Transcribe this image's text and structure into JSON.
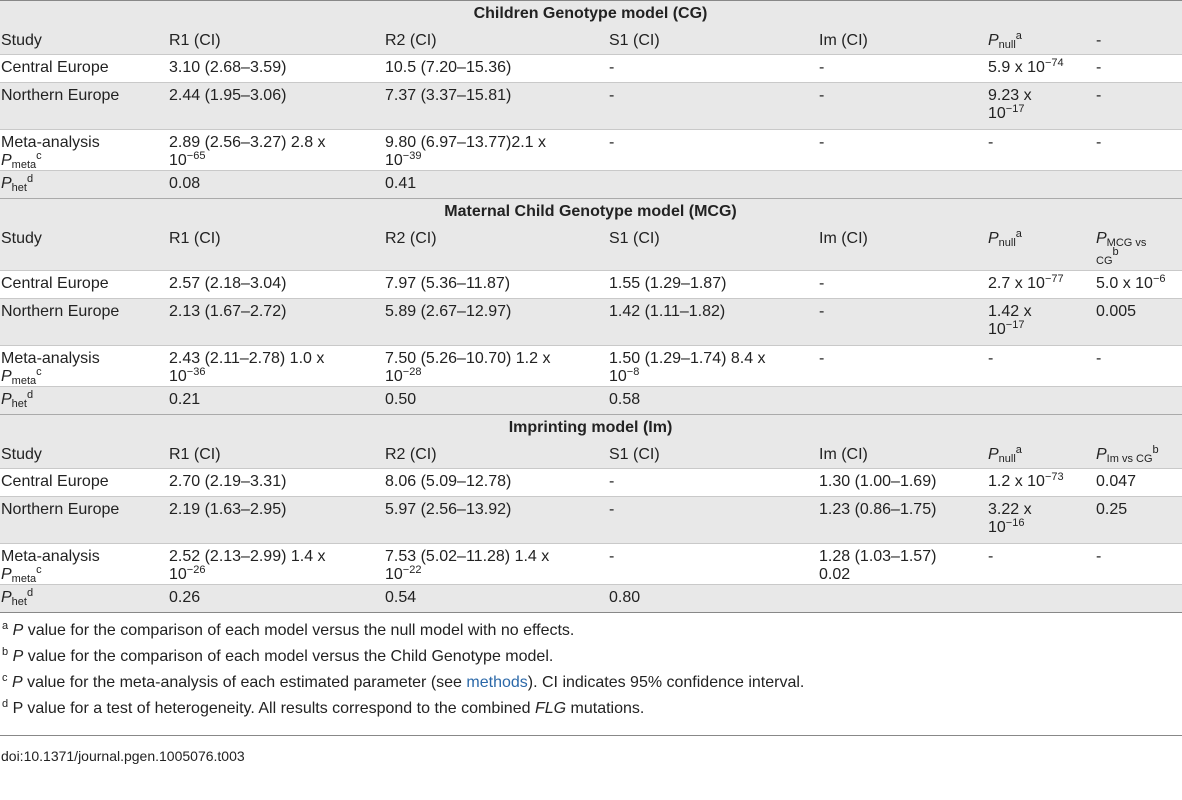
{
  "sections": [
    {
      "title": "Children Genotype model (CG)",
      "header": [
        "Study",
        "R1 (CI)",
        "R2 (CI)",
        "S1 (CI)",
        "Im (CI)",
        "P",
        "null",
        "a",
        "-"
      ],
      "rows": [
        [
          "Central Europe",
          "3.10 (2.68–3.59)",
          "10.5 (7.20–15.36)",
          "-",
          "-",
          "5.9 x 10",
          "−74",
          "-"
        ],
        [
          "Northern Europe",
          "2.44 (1.95–3.06)",
          "7.37 (3.37–15.81)",
          "-",
          "-",
          "9.23 x",
          "10",
          "−17",
          "-"
        ],
        [
          "Meta-analysis",
          "P",
          "meta",
          "c",
          "2.89 (2.56–3.27) 2.8 x",
          "10",
          "−65",
          "9.80 (6.97–13.77)2.1 x",
          "10",
          "−39",
          "-",
          "-",
          "-",
          "-"
        ],
        [
          "P",
          "het",
          "d",
          "0.08",
          "0.41"
        ]
      ]
    },
    {
      "title": "Maternal Child Genotype model (MCG)",
      "header": [
        "Study",
        "R1 (CI)",
        "R2 (CI)",
        "S1 (CI)",
        "Im (CI)",
        "P",
        "null",
        "a",
        "P",
        "MCG vs",
        "CG",
        "b"
      ],
      "rows": [
        [
          "Central Europe",
          "2.57 (2.18–3.04)",
          "7.97 (5.36–11.87)",
          "1.55 (1.29–1.87)",
          "-",
          "2.7 x 10",
          "−77",
          "5.0 x 10",
          "−6"
        ],
        [
          "Northern Europe",
          "2.13 (1.67–2.72)",
          "5.89 (2.67–12.97)",
          "1.42 (1.11–1.82)",
          "-",
          "1.42 x",
          "10",
          "−17",
          "0.005"
        ],
        [
          "Meta-analysis",
          "P",
          "meta",
          "c",
          "2.43 (2.11–2.78) 1.0 x",
          "10",
          "−36",
          "7.50 (5.26–10.70) 1.2 x",
          "10",
          "−28",
          "1.50 (1.29–1.74) 8.4 x",
          "10",
          "−8",
          "-",
          "-",
          "-"
        ],
        [
          "P",
          "het",
          "d",
          "0.21",
          "0.50",
          "0.58"
        ]
      ]
    },
    {
      "title": "Imprinting model (Im)",
      "header": [
        "Study",
        "R1 (CI)",
        "R2 (CI)",
        "S1 (CI)",
        "Im (CI)",
        "P",
        "null",
        "a",
        "P",
        "Im vs CG",
        "b"
      ],
      "rows": [
        [
          "Central Europe",
          "2.70 (2.19–3.31)",
          "8.06 (5.09–12.78)",
          "-",
          "1.30 (1.00–1.69)",
          "1.2 x 10",
          "−73",
          "0.047"
        ],
        [
          "Northern Europe",
          "2.19 (1.63–2.95)",
          "5.97 (2.56–13.92)",
          "-",
          "1.23 (0.86–1.75)",
          "3.22 x",
          "10",
          "−16",
          "0.25"
        ],
        [
          "Meta-analysis",
          "P",
          "meta",
          "c",
          "2.52 (2.13–2.99) 1.4 x",
          "10",
          "−26",
          "7.53 (5.02–11.28) 1.4 x",
          "10",
          "−22",
          "-",
          "1.28 (1.03–1.57)",
          "0.02",
          "-",
          "-"
        ],
        [
          "P",
          "het",
          "d",
          "0.26",
          "0.54",
          "0.80"
        ]
      ]
    }
  ],
  "footnotes": [
    {
      "mark": "a",
      "italic": "P",
      "text": " value for the comparison of each model versus the null model with no effects."
    },
    {
      "mark": "b",
      "italic": "P",
      "text": " value for the comparison of each model versus the Child Genotype model."
    },
    {
      "mark": "c",
      "italic": "P",
      "text": " value for the meta-analysis of each estimated parameter (see ",
      "link": "methods",
      "after": "). CI indicates 95% confidence interval."
    },
    {
      "mark": "d",
      "text": " P value for a test of heterogeneity. All results correspond to the combined ",
      "italic2": "FLG",
      "after": " mutations."
    }
  ],
  "doi": "doi:10.1371/journal.pgen.1005076.t003"
}
